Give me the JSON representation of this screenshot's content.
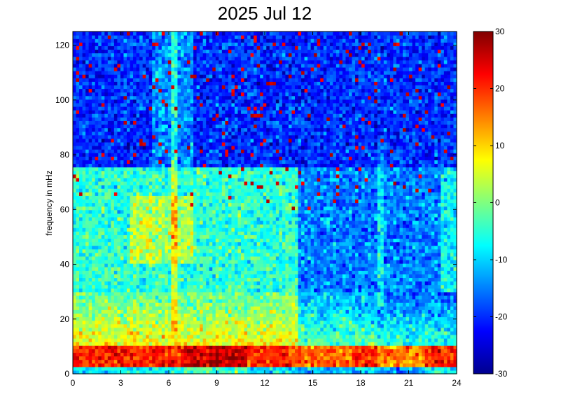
{
  "chart_data": {
    "type": "heatmap",
    "title": "2025 Jul 12",
    "xlabel": "",
    "ylabel": "frequency in mHz",
    "xlim": [
      0,
      24
    ],
    "ylim": [
      0,
      125
    ],
    "xticks": [
      0,
      3,
      6,
      9,
      12,
      15,
      18,
      21,
      24
    ],
    "yticks": [
      0,
      20,
      40,
      60,
      80,
      100,
      120
    ],
    "x_bins": 121,
    "y_bins": 96,
    "colormap": "jet",
    "colorbar": {
      "range": [
        -30,
        30
      ],
      "ticks": [
        -30,
        -20,
        -10,
        0,
        10,
        20,
        30
      ]
    },
    "features": {
      "low_freq_band_mHz": [
        0,
        10
      ],
      "low_freq_band_level": 25,
      "strongest_region_hours": [
        7,
        11
      ],
      "background_level_high_freq": -20,
      "mid_freq_level_hours_0_14": -5
    }
  }
}
